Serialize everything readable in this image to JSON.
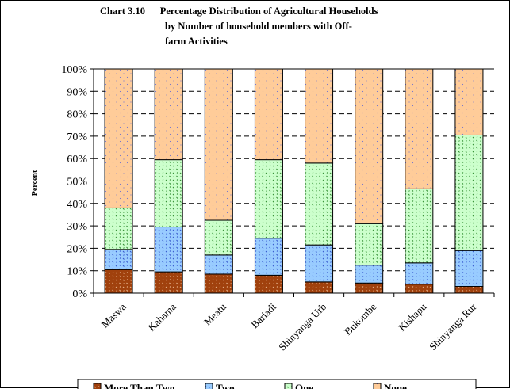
{
  "chart_data": {
    "type": "bar",
    "stacked": true,
    "percent": true,
    "title_lines": [
      "Chart 3.10      Percentage Distribution of Agricultural Households",
      "by Number of household members with Off-",
      "farm Activities"
    ],
    "ylabel": "Percent",
    "xlabel": "",
    "ylim": [
      0,
      100
    ],
    "yticks": [
      "0%",
      "10%",
      "20%",
      "30%",
      "40%",
      "50%",
      "60%",
      "70%",
      "80%",
      "90%",
      "100%"
    ],
    "grid": true,
    "legend_position": "bottom",
    "categories": [
      "Maswa",
      "Kahama",
      "Meatu",
      "Bariadi",
      "Shinyanga Urb",
      "Bukombe",
      "Kishapu",
      "Shinyanga Rur"
    ],
    "series": [
      {
        "name": "More Than Two",
        "color": "#a0410d",
        "values": [
          10.5,
          9.5,
          8.5,
          8.0,
          5.0,
          4.5,
          4.0,
          3.0
        ]
      },
      {
        "name": "Two",
        "color": "#99ccff",
        "values": [
          9.0,
          20.0,
          8.5,
          16.5,
          16.5,
          8.0,
          9.5,
          16.0
        ]
      },
      {
        "name": "One",
        "color": "#ccffcc",
        "values": [
          18.5,
          30.0,
          15.5,
          35.0,
          36.5,
          18.5,
          33.0,
          51.5
        ]
      },
      {
        "name": "None",
        "color": "#ffcc99",
        "values": [
          62.0,
          40.5,
          67.5,
          40.5,
          42.0,
          69.0,
          53.5,
          29.5
        ]
      }
    ]
  }
}
